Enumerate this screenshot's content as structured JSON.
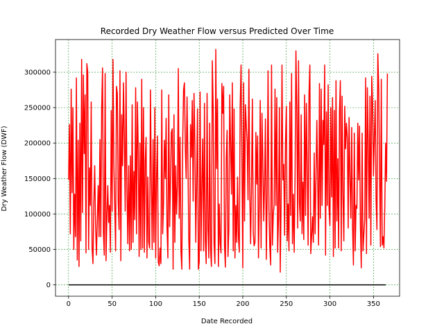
{
  "chart_data": {
    "type": "line",
    "title": "Recorded Dry Weather Flow versus Predicted Over Time",
    "xlabel": "Date Recorded",
    "ylabel": "Dry Weather Flow (DWF)",
    "xlim": [
      -15,
      380
    ],
    "ylim": [
      -16000,
      346000
    ],
    "x_ticks": [
      0,
      50,
      100,
      150,
      200,
      250,
      300,
      350
    ],
    "y_ticks": [
      0,
      50000,
      100000,
      150000,
      200000,
      250000,
      300000
    ],
    "grid": true,
    "grid_color": "#228b22",
    "legend": "none",
    "series": [
      {
        "color": "#ff0000",
        "x_start": 0,
        "x_step": 1,
        "values": [
          148000,
          226000,
          72000,
          276000,
          130000,
          250000,
          50000,
          128000,
          68000,
          292000,
          35000,
          204000,
          26000,
          228000,
          62000,
          318000,
          102000,
          296000,
          185000,
          268000,
          45000,
          312000,
          300000,
          50000,
          165000,
          112000,
          258000,
          52000,
          30000,
          115000,
          168000,
          85000,
          42000,
          90000,
          140000,
          68000,
          205000,
          68000,
          248000,
          306000,
          75000,
          42000,
          298000,
          34000,
          98000,
          140000,
          88000,
          112000,
          46000,
          246000,
          104000,
          318000,
          170000,
          112000,
          48000,
          280000,
          270000,
          116000,
          78000,
          302000,
          34000,
          240000,
          168000,
          285000,
          210000,
          104000,
          300000,
          138000,
          58000,
          168000,
          48000,
          182000,
          50000,
          254000,
          60000,
          160000,
          92000,
          278000,
          72000,
          258000,
          190000,
          40000,
          200000,
          50000,
          290000,
          52000,
          250000,
          46000,
          175000,
          208000,
          38000,
          152000,
          60000,
          52000,
          275000,
          148000,
          50000,
          205000,
          60000,
          250000,
          38000,
          150000,
          210000,
          32000,
          27000,
          52000,
          30000,
          275000,
          72000,
          115000,
          204000,
          150000,
          235000,
          82000,
          38000,
          268000,
          82000,
          145000,
          215000,
          220000,
          22000,
          240000,
          60000,
          168000,
          100000,
          142000,
          305000,
          94000,
          208000,
          48000,
          22000,
          198000,
          275000,
          285000,
          194000,
          150000,
          265000,
          178000,
          65000,
          22000,
          226000,
          180000,
          260000,
          118000,
          270000,
          200000,
          60000,
          145000,
          248000,
          22000,
          32000,
          272000,
          48000,
          140000,
          206000,
          48000,
          256000,
          62000,
          30000,
          270000,
          80000,
          38000,
          228000,
          50000,
          26000,
          316000,
          248000,
          58000,
          30000,
          332000,
          164000,
          262000,
          26000,
          114000,
          58000,
          45000,
          284000,
          242000,
          280000,
          56000,
          25000,
          178000,
          218000,
          40000,
          78000,
          268000,
          198000,
          128000,
          285000,
          48000,
          248000,
          38000,
          112000,
          60000,
          152000,
          66000,
          46000,
          252000,
          310000,
          176000,
          24000,
          285000,
          90000,
          254000,
          226000,
          202000,
          120000,
          304000,
          132000,
          58000,
          140000,
          262000,
          74000,
          55000,
          60000,
          215000,
          142000,
          210000,
          38000,
          112000,
          260000,
          52000,
          242000,
          178000,
          90000,
          142000,
          234000,
          36000,
          128000,
          302000,
          106000,
          54000,
          28000,
          310000,
          56000,
          98000,
          114000,
          276000,
          112000,
          264000,
          46000,
          94000,
          250000,
          18000,
          120000,
          310000,
          148000,
          170000,
          70000,
          200000,
          252000,
          62000,
          114000,
          48000,
          258000,
          98000,
          298000,
          58000,
          128000,
          46000,
          152000,
          330000,
          248000,
          80000,
          316000,
          116000,
          90000,
          240000,
          72000,
          145000,
          64000,
          268000,
          98000,
          256000,
          162000,
          56000,
          270000,
          310000,
          44000,
          68000,
          96000,
          60000,
          186000,
          72000,
          150000,
          232000,
          146000,
          56000,
          284000,
          94000,
          276000,
          112000,
          232000,
          198000,
          310000,
          42000,
          244000,
          112000,
          282000,
          108000,
          84000,
          250000,
          124000,
          264000,
          40000,
          246000,
          52000,
          288000,
          90000,
          178000,
          52000,
          244000,
          288000,
          48000,
          266000,
          124000,
          62000,
          252000,
          192000,
          228000,
          208000,
          80000,
          236000,
          150000,
          94000,
          222000,
          82000,
          28000,
          214000,
          48000,
          112000,
          108000,
          228000,
          148000,
          224000,
          84000,
          24000,
          214000,
          48000,
          72000,
          92000,
          292000,
          44000,
          278000,
          202000,
          94000,
          266000,
          56000,
          294000,
          256000,
          154000,
          208000,
          260000,
          120000,
          78000,
          326000,
          280000,
          160000,
          54000,
          290000,
          56000,
          68000,
          52000,
          110000,
          200000,
          146000,
          298000
        ]
      },
      {
        "color": "#000000",
        "x_start": 0,
        "x_step": 1,
        "count": 365,
        "constant_value": 0
      }
    ]
  }
}
